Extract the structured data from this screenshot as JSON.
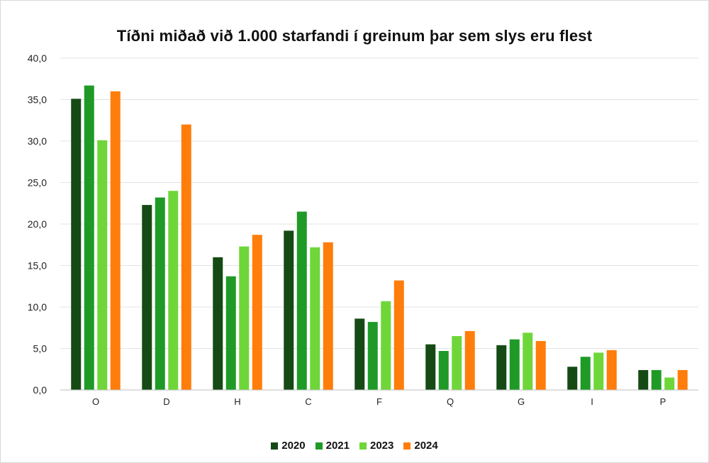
{
  "chart_data": {
    "type": "bar",
    "title": "Tíðni miðað við 1.000 starfandi í greinum þar sem slys eru flest",
    "xlabel": "",
    "ylabel": "",
    "ylim": [
      0,
      40
    ],
    "yticks": [
      "0,0",
      "5,0",
      "10,0",
      "15,0",
      "20,0",
      "25,0",
      "30,0",
      "35,0",
      "40,0"
    ],
    "grid": true,
    "legend_position": "bottom",
    "categories": [
      "O",
      "D",
      "H",
      "C",
      "F",
      "Q",
      "G",
      "I",
      "P"
    ],
    "series": [
      {
        "name": "2020",
        "color": "#154a15",
        "values": [
          35.1,
          22.3,
          16.0,
          19.2,
          8.6,
          5.5,
          5.4,
          2.8,
          2.4
        ]
      },
      {
        "name": "2021",
        "color": "#1f9a27",
        "values": [
          36.7,
          23.2,
          13.7,
          21.5,
          8.2,
          4.7,
          6.1,
          4.0,
          2.4
        ]
      },
      {
        "name": "2023",
        "color": "#6fd63a",
        "values": [
          30.1,
          24.0,
          17.3,
          17.2,
          10.7,
          6.5,
          6.9,
          4.5,
          1.5
        ]
      },
      {
        "name": "2024",
        "color": "#ff7d0a",
        "values": [
          36.0,
          32.0,
          18.7,
          17.8,
          13.2,
          7.1,
          5.9,
          4.8,
          2.4
        ]
      }
    ]
  }
}
